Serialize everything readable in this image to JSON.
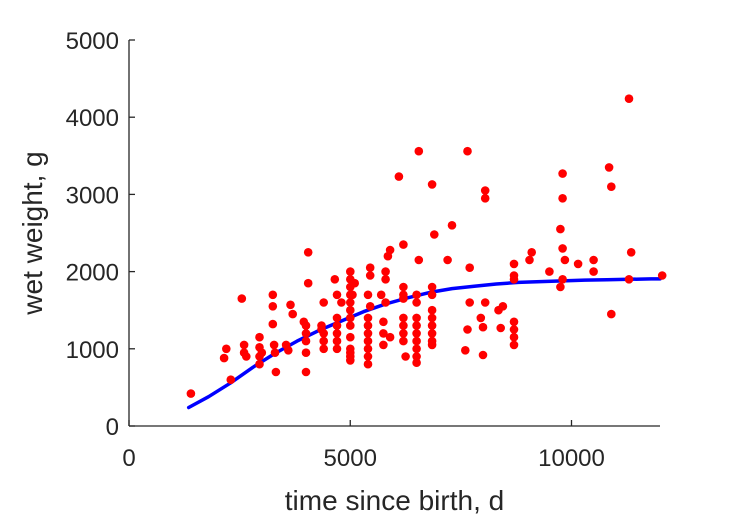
{
  "chart_data": {
    "type": "scatter",
    "title": "",
    "xlabel": "time since birth, d",
    "ylabel": "wet weight, g",
    "xlim": [
      0,
      12000
    ],
    "ylim": [
      0,
      5000
    ],
    "x_ticks": [
      0,
      5000,
      10000
    ],
    "x_tick_labels": [
      "0",
      "5000",
      "10000"
    ],
    "y_ticks": [
      0,
      1000,
      2000,
      3000,
      4000,
      5000
    ],
    "y_tick_labels": [
      "0",
      "1000",
      "2000",
      "3000",
      "4000",
      "5000"
    ],
    "grid": false,
    "box": false,
    "colors": {
      "points": "#ff0000",
      "curve": "#0000ff",
      "axes": "#262626"
    },
    "series": [
      {
        "kind": "points",
        "color": "#ff0000",
        "points": [
          [
            1400,
            420
          ],
          [
            2150,
            880
          ],
          [
            2200,
            1000
          ],
          [
            2300,
            600
          ],
          [
            2550,
            1650
          ],
          [
            2600,
            1050
          ],
          [
            2600,
            950
          ],
          [
            2650,
            900
          ],
          [
            2950,
            1150
          ],
          [
            2950,
            1020
          ],
          [
            2950,
            900
          ],
          [
            2950,
            800
          ],
          [
            3000,
            950
          ],
          [
            3250,
            1700
          ],
          [
            3250,
            1550
          ],
          [
            3250,
            1320
          ],
          [
            3280,
            1050
          ],
          [
            3300,
            950
          ],
          [
            3320,
            700
          ],
          [
            3550,
            1050
          ],
          [
            3600,
            980
          ],
          [
            3650,
            1570
          ],
          [
            3700,
            1450
          ],
          [
            3950,
            1350
          ],
          [
            4000,
            1200
          ],
          [
            4000,
            1300
          ],
          [
            4000,
            1100
          ],
          [
            4000,
            950
          ],
          [
            4050,
            1850
          ],
          [
            4050,
            2250
          ],
          [
            4000,
            700
          ],
          [
            4350,
            1250
          ],
          [
            4350,
            1300
          ],
          [
            4400,
            1200
          ],
          [
            4400,
            1100
          ],
          [
            4400,
            1000
          ],
          [
            4400,
            1600
          ],
          [
            4650,
            1900
          ],
          [
            4700,
            1700
          ],
          [
            4700,
            1400
          ],
          [
            4700,
            1300
          ],
          [
            4700,
            1200
          ],
          [
            4700,
            1100
          ],
          [
            4700,
            1000
          ],
          [
            4800,
            1600
          ],
          [
            5000,
            2000
          ],
          [
            5000,
            1900
          ],
          [
            5000,
            1800
          ],
          [
            5000,
            1700
          ],
          [
            5000,
            1600
          ],
          [
            5000,
            1500
          ],
          [
            5000,
            1400
          ],
          [
            5000,
            1300
          ],
          [
            5000,
            1150
          ],
          [
            5000,
            1000
          ],
          [
            5000,
            950
          ],
          [
            5000,
            900
          ],
          [
            5000,
            850
          ],
          [
            5050,
            1700
          ],
          [
            5100,
            1850
          ],
          [
            5400,
            1700
          ],
          [
            5400,
            1400
          ],
          [
            5400,
            1300
          ],
          [
            5400,
            1200
          ],
          [
            5400,
            1100
          ],
          [
            5400,
            1000
          ],
          [
            5400,
            900
          ],
          [
            5400,
            800
          ],
          [
            5450,
            2050
          ],
          [
            5450,
            1950
          ],
          [
            5450,
            1550
          ],
          [
            5700,
            1700
          ],
          [
            5750,
            1350
          ],
          [
            5750,
            1200
          ],
          [
            5750,
            1050
          ],
          [
            5800,
            1900
          ],
          [
            5800,
            2000
          ],
          [
            5850,
            2200
          ],
          [
            5900,
            2280
          ],
          [
            5800,
            1600
          ],
          [
            5900,
            1150
          ],
          [
            6100,
            3230
          ],
          [
            6200,
            2350
          ],
          [
            6200,
            1800
          ],
          [
            6200,
            1700
          ],
          [
            6200,
            1650
          ],
          [
            6200,
            1400
          ],
          [
            6200,
            1300
          ],
          [
            6200,
            1200
          ],
          [
            6200,
            1100
          ],
          [
            6250,
            900
          ],
          [
            6550,
            3560
          ],
          [
            6550,
            2150
          ],
          [
            6500,
            1700
          ],
          [
            6500,
            1600
          ],
          [
            6500,
            1400
          ],
          [
            6500,
            1300
          ],
          [
            6500,
            1200
          ],
          [
            6500,
            1100
          ],
          [
            6500,
            1000
          ],
          [
            6500,
            900
          ],
          [
            6500,
            820
          ],
          [
            6850,
            3130
          ],
          [
            6900,
            2480
          ],
          [
            6850,
            1800
          ],
          [
            6850,
            1700
          ],
          [
            6850,
            1500
          ],
          [
            6850,
            1400
          ],
          [
            6850,
            1300
          ],
          [
            6850,
            1200
          ],
          [
            6850,
            1100
          ],
          [
            6850,
            1050
          ],
          [
            7200,
            2150
          ],
          [
            7300,
            2600
          ],
          [
            7650,
            3560
          ],
          [
            7700,
            2050
          ],
          [
            7700,
            1600
          ],
          [
            7650,
            1250
          ],
          [
            7600,
            980
          ],
          [
            7950,
            1400
          ],
          [
            8050,
            3050
          ],
          [
            8050,
            2950
          ],
          [
            8050,
            1600
          ],
          [
            8000,
            1280
          ],
          [
            8000,
            920
          ],
          [
            8350,
            1500
          ],
          [
            8400,
            1270
          ],
          [
            8450,
            1550
          ],
          [
            8700,
            2100
          ],
          [
            8700,
            1950
          ],
          [
            8700,
            1900
          ],
          [
            8700,
            1350
          ],
          [
            8700,
            1250
          ],
          [
            8700,
            1150
          ],
          [
            8700,
            1050
          ],
          [
            9050,
            2150
          ],
          [
            9100,
            2250
          ],
          [
            9500,
            2000
          ],
          [
            9800,
            3270
          ],
          [
            9800,
            2950
          ],
          [
            9750,
            2550
          ],
          [
            9800,
            2300
          ],
          [
            9850,
            2150
          ],
          [
            9800,
            1900
          ],
          [
            9750,
            1800
          ],
          [
            10150,
            2100
          ],
          [
            10500,
            2150
          ],
          [
            10500,
            2000
          ],
          [
            10850,
            3350
          ],
          [
            10900,
            3100
          ],
          [
            10900,
            1450
          ],
          [
            11300,
            4240
          ],
          [
            11350,
            2250
          ],
          [
            11300,
            1900
          ],
          [
            12050,
            1950
          ]
        ]
      },
      {
        "kind": "curve",
        "color": "#0000ff",
        "points": [
          [
            1350,
            240
          ],
          [
            1800,
            380
          ],
          [
            2300,
            560
          ],
          [
            2800,
            760
          ],
          [
            3300,
            940
          ],
          [
            3800,
            1100
          ],
          [
            4300,
            1240
          ],
          [
            4800,
            1360
          ],
          [
            5300,
            1480
          ],
          [
            5800,
            1580
          ],
          [
            6300,
            1660
          ],
          [
            6800,
            1730
          ],
          [
            7300,
            1780
          ],
          [
            7800,
            1810
          ],
          [
            8300,
            1840
          ],
          [
            8800,
            1860
          ],
          [
            9300,
            1870
          ],
          [
            9800,
            1880
          ],
          [
            10300,
            1890
          ],
          [
            10800,
            1895
          ],
          [
            11300,
            1900
          ],
          [
            11800,
            1905
          ],
          [
            12000,
            1905
          ]
        ]
      }
    ]
  }
}
